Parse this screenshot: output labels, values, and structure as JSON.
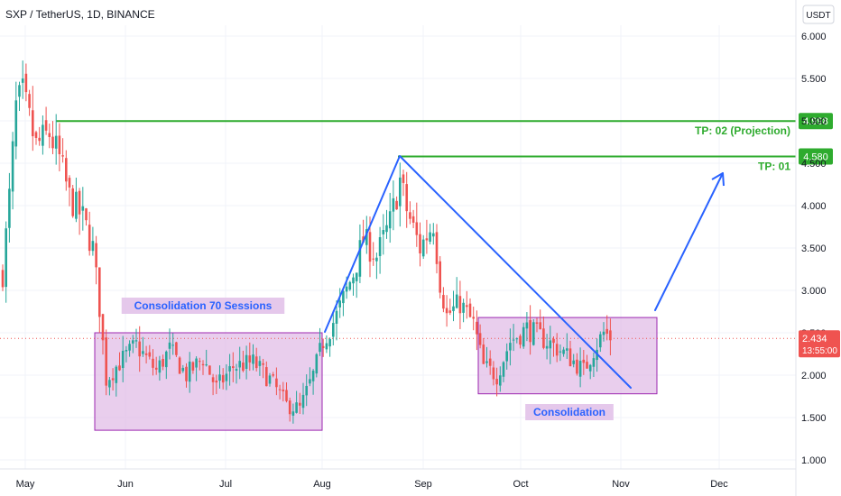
{
  "header": {
    "title": "SXP / TetherUS, 1D, BINANCE",
    "currency_button": "USDT"
  },
  "colors": {
    "up": "#26a69a",
    "down": "#ef5350",
    "level": "#2eab2e",
    "trend": "#2962ff",
    "box_fill": "#e1bee7",
    "box_stroke": "#9c27b0",
    "price_line": "#ef5350",
    "grid": "#f0f3fa"
  },
  "chart_data": {
    "type": "candlestick",
    "ylim": [
      0.85,
      6.3
    ],
    "yticks": [
      "1.000",
      "1.500",
      "2.000",
      "2.500",
      "3.000",
      "3.500",
      "4.000",
      "4.500",
      "5.000",
      "5.500",
      "6.000"
    ],
    "xticks": [
      "May",
      "Jun",
      "Jul",
      "Aug",
      "Sep",
      "Oct",
      "Nov",
      "Dec"
    ],
    "grid": true,
    "last_price": "2.434",
    "countdown": "13:55:00",
    "levels": [
      {
        "label": "TP: 02 (Projection)",
        "value": "4.998"
      },
      {
        "label": "TP: 01",
        "value": "4.580"
      }
    ],
    "zones": [
      {
        "label": "Consolidation 70 Sessions",
        "low": 1.35,
        "high": 2.5
      },
      {
        "label": "Consolidation",
        "low": 1.78,
        "high": 2.68
      }
    ],
    "anchors": [
      {
        "d": 0,
        "v": 3.2
      },
      {
        "d": 2,
        "v": 4.1
      },
      {
        "d": 4,
        "v": 5.15
      },
      {
        "d": 6,
        "v": 5.3
      },
      {
        "d": 8,
        "v": 5.0
      },
      {
        "d": 10,
        "v": 4.7
      },
      {
        "d": 14,
        "v": 4.85
      },
      {
        "d": 17,
        "v": 4.55
      },
      {
        "d": 20,
        "v": 4.1
      },
      {
        "d": 24,
        "v": 3.85
      },
      {
        "d": 27,
        "v": 3.5
      },
      {
        "d": 29,
        "v": 2.8
      },
      {
        "d": 31,
        "v": 1.95
      },
      {
        "d": 35,
        "v": 2.15
      },
      {
        "d": 40,
        "v": 2.35
      },
      {
        "d": 46,
        "v": 2.05
      },
      {
        "d": 50,
        "v": 2.3
      },
      {
        "d": 55,
        "v": 2.0
      },
      {
        "d": 60,
        "v": 2.2
      },
      {
        "d": 64,
        "v": 1.85
      },
      {
        "d": 69,
        "v": 2.1
      },
      {
        "d": 75,
        "v": 2.15
      },
      {
        "d": 80,
        "v": 1.95
      },
      {
        "d": 85,
        "v": 1.65
      },
      {
        "d": 89,
        "v": 1.6
      },
      {
        "d": 93,
        "v": 2.0
      },
      {
        "d": 96,
        "v": 2.4
      },
      {
        "d": 100,
        "v": 2.7
      },
      {
        "d": 105,
        "v": 3.2
      },
      {
        "d": 108,
        "v": 3.6
      },
      {
        "d": 112,
        "v": 3.4
      },
      {
        "d": 116,
        "v": 3.8
      },
      {
        "d": 119,
        "v": 4.3
      },
      {
        "d": 121,
        "v": 3.95
      },
      {
        "d": 125,
        "v": 3.5
      },
      {
        "d": 129,
        "v": 3.8
      },
      {
        "d": 131,
        "v": 3.1
      },
      {
        "d": 133,
        "v": 2.7
      },
      {
        "d": 137,
        "v": 2.85
      },
      {
        "d": 141,
        "v": 2.6
      },
      {
        "d": 144,
        "v": 2.1
      },
      {
        "d": 148,
        "v": 2.0
      },
      {
        "d": 152,
        "v": 2.4
      },
      {
        "d": 157,
        "v": 2.55
      },
      {
        "d": 161,
        "v": 2.45
      },
      {
        "d": 165,
        "v": 2.35
      },
      {
        "d": 170,
        "v": 2.2
      },
      {
        "d": 174,
        "v": 2.05
      },
      {
        "d": 177,
        "v": 2.3
      },
      {
        "d": 180,
        "v": 2.5
      },
      {
        "d": 182,
        "v": 2.45
      }
    ]
  }
}
